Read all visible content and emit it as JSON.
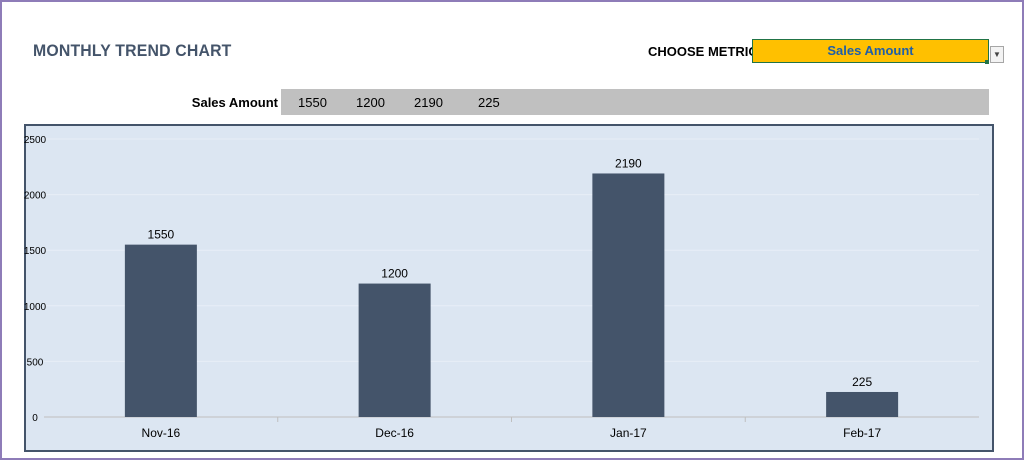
{
  "header": {
    "title": "MONTHLY TREND CHART",
    "metric_label": "CHOOSE METRIC",
    "metric_value": "Sales Amount",
    "dropdown_icon": "chevron-down-icon"
  },
  "data_row": {
    "label": "Sales Amount",
    "values": [
      "1550",
      "1200",
      "2190",
      "225"
    ]
  },
  "colors": {
    "bar": "#44546a",
    "plot_bg": "#dce6f2",
    "select_bg": "#ffc000",
    "select_text": "#1f5fa8"
  },
  "chart_data": {
    "type": "bar",
    "categories": [
      "Nov-16",
      "Dec-16",
      "Jan-17",
      "Feb-17"
    ],
    "values": [
      1550,
      1200,
      2190,
      225
    ],
    "data_labels": [
      "1550",
      "1200",
      "2190",
      "225"
    ],
    "title": "",
    "xlabel": "",
    "ylabel": "",
    "ylim": [
      0,
      2500
    ],
    "yticks": [
      0,
      500,
      1000,
      1500,
      2000,
      2500
    ],
    "grid": true,
    "legend": "none"
  }
}
